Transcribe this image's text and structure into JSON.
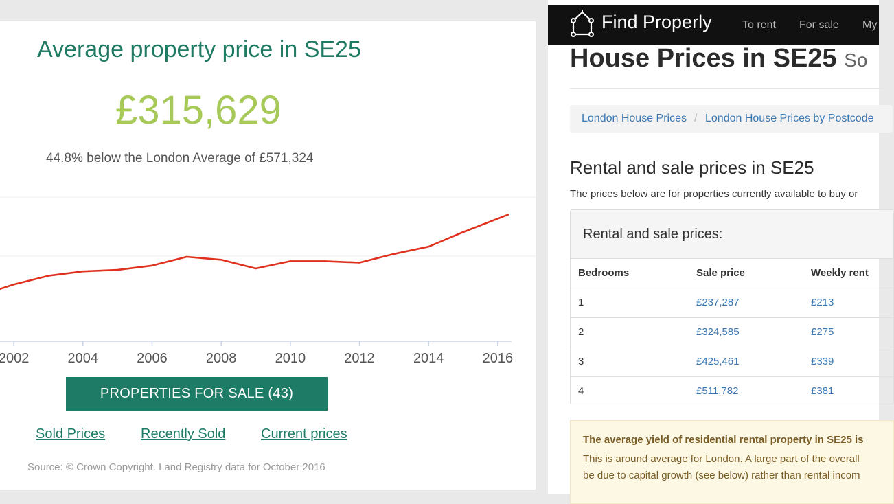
{
  "left": {
    "title": "Average property price in SE25",
    "price": "£315,629",
    "comparison": "44.8% below the London Average of £571,324",
    "button_label": "PROPERTIES FOR SALE (43)",
    "links": [
      "Sold Prices",
      "Recently Sold",
      "Current prices"
    ],
    "source": "Source: © Crown Copyright. Land Registry data for October 2016",
    "accent_color": "#1e7b66",
    "price_color": "#a7c957",
    "line_color": "#e0311f"
  },
  "chart_data": {
    "type": "line",
    "title": "",
    "xlabel": "",
    "ylabel": "",
    "x_ticks": [
      "2002",
      "2004",
      "2006",
      "2008",
      "2010",
      "2012",
      "2014",
      "2016"
    ],
    "xlim": [
      2001.6,
      2016.4
    ],
    "ylim": [
      0,
      100
    ],
    "grid": true,
    "series": [
      {
        "x": [
          2001.6,
          2002,
          2003,
          2004,
          2005,
          2006,
          2007,
          2008,
          2009,
          2010,
          2011,
          2012,
          2013,
          2014,
          2015,
          2016.3
        ],
        "values": [
          36,
          39,
          45,
          48,
          49,
          52,
          58,
          56,
          50,
          55,
          55,
          54,
          60,
          65,
          75,
          87
        ]
      }
    ]
  },
  "right": {
    "brand": "Find Properly",
    "nav": [
      "To rent",
      "For sale",
      "My"
    ],
    "page_title": "House Prices in SE25",
    "page_title_suffix": "So",
    "breadcrumbs": [
      "London House Prices",
      "London House Prices by Postcode"
    ],
    "breadcrumb_separator": "/",
    "section_heading": "Rental and sale prices in SE25",
    "section_desc": "The prices below are for properties currently available to buy or",
    "prices_box_title": "Rental and sale prices:",
    "table": {
      "headers": [
        "Bedrooms",
        "Sale price",
        "Weekly rent"
      ],
      "rows": [
        [
          "1",
          "£237,287",
          "£213"
        ],
        [
          "2",
          "£324,585",
          "£275"
        ],
        [
          "3",
          "£425,461",
          "£339"
        ],
        [
          "4",
          "£511,782",
          "£381"
        ]
      ]
    },
    "yield_title": "The average yield of residential rental property in SE25 is",
    "yield_line1": "This is around average for London. A large part of the overall",
    "yield_line2": "be due to capital growth (see below) rather than rental incom",
    "link_color": "#3a78b4",
    "warning_bg": "#fcf8e3"
  }
}
